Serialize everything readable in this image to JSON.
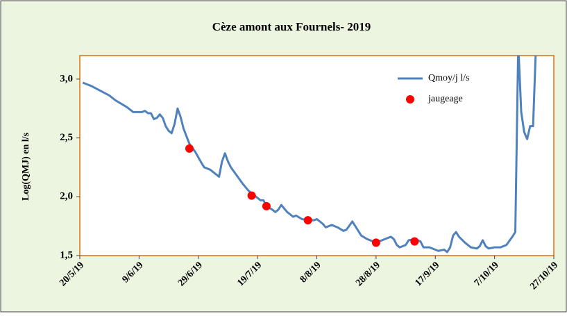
{
  "chart_data": {
    "type": "line",
    "title": "Cèze amont aux Fournels- 2019",
    "y_label": "Log(QMJ) en l/s",
    "xlim": [
      "2019-05-20",
      "2019-10-27"
    ],
    "xticks": [
      {
        "value": "2019-05-20",
        "label": "20/5/19"
      },
      {
        "value": "2019-06-09",
        "label": "9/6/19"
      },
      {
        "value": "2019-06-29",
        "label": "29/6/19"
      },
      {
        "value": "2019-07-19",
        "label": "19/7/19"
      },
      {
        "value": "2019-08-08",
        "label": "8/8/19"
      },
      {
        "value": "2019-08-28",
        "label": "28/8/19"
      },
      {
        "value": "2019-09-17",
        "label": "17/9/19"
      },
      {
        "value": "2019-10-07",
        "label": "7/10/19"
      },
      {
        "value": "2019-10-27",
        "label": "27/10/19"
      }
    ],
    "ylim": [
      1.5,
      3.2
    ],
    "yticks": [
      {
        "value": 1.5,
        "label": "1,5"
      },
      {
        "value": 2.0,
        "label": "2,0"
      },
      {
        "value": 2.5,
        "label": "2,5"
      },
      {
        "value": 3.0,
        "label": "3,0"
      }
    ],
    "legend": "top-right",
    "series": [
      {
        "name": "Qmoy/j l/s",
        "color": "#4f81bd",
        "type": "line",
        "x": [
          "2019-05-21",
          "2019-05-24",
          "2019-05-27",
          "2019-05-30",
          "2019-06-01",
          "2019-06-03",
          "2019-06-05",
          "2019-06-07",
          "2019-06-10",
          "2019-06-11",
          "2019-06-12",
          "2019-06-13",
          "2019-06-14",
          "2019-06-15",
          "2019-06-16",
          "2019-06-17",
          "2019-06-18",
          "2019-06-19",
          "2019-06-20",
          "2019-06-21",
          "2019-06-22",
          "2019-06-23",
          "2019-06-24",
          "2019-06-26",
          "2019-06-28",
          "2019-06-30",
          "2019-07-01",
          "2019-07-03",
          "2019-07-05",
          "2019-07-06",
          "2019-07-07",
          "2019-07-08",
          "2019-07-09",
          "2019-07-10",
          "2019-07-12",
          "2019-07-14",
          "2019-07-16",
          "2019-07-18",
          "2019-07-20",
          "2019-07-21",
          "2019-07-22",
          "2019-07-24",
          "2019-07-25",
          "2019-07-26",
          "2019-07-27",
          "2019-07-29",
          "2019-07-31",
          "2019-08-01",
          "2019-08-03",
          "2019-08-05",
          "2019-08-07",
          "2019-08-08",
          "2019-08-10",
          "2019-08-11",
          "2019-08-13",
          "2019-08-15",
          "2019-08-17",
          "2019-08-18",
          "2019-08-20",
          "2019-08-22",
          "2019-08-23",
          "2019-08-25",
          "2019-08-27",
          "2019-08-29",
          "2019-08-31",
          "2019-09-02",
          "2019-09-03",
          "2019-09-04",
          "2019-09-05",
          "2019-09-07",
          "2019-09-08",
          "2019-09-10",
          "2019-09-12",
          "2019-09-13",
          "2019-09-15",
          "2019-09-17",
          "2019-09-18",
          "2019-09-20",
          "2019-09-21",
          "2019-09-22",
          "2019-09-23",
          "2019-09-24",
          "2019-09-25",
          "2019-09-27",
          "2019-09-29",
          "2019-10-01",
          "2019-10-02",
          "2019-10-03",
          "2019-10-04",
          "2019-10-05",
          "2019-10-07",
          "2019-10-09",
          "2019-10-11",
          "2019-10-13",
          "2019-10-14",
          "2019-10-15",
          "2019-10-16",
          "2019-10-17",
          "2019-10-18",
          "2019-10-19",
          "2019-10-20",
          "2019-10-21"
        ],
        "values": [
          2.97,
          2.94,
          2.9,
          2.86,
          2.82,
          2.79,
          2.76,
          2.72,
          2.72,
          2.73,
          2.71,
          2.71,
          2.66,
          2.67,
          2.7,
          2.67,
          2.6,
          2.56,
          2.54,
          2.62,
          2.75,
          2.68,
          2.58,
          2.45,
          2.38,
          2.29,
          2.25,
          2.23,
          2.19,
          2.17,
          2.3,
          2.37,
          2.3,
          2.25,
          2.18,
          2.11,
          2.05,
          2.01,
          1.97,
          1.97,
          1.92,
          1.89,
          1.87,
          1.89,
          1.93,
          1.87,
          1.83,
          1.84,
          1.81,
          1.8,
          1.8,
          1.81,
          1.77,
          1.74,
          1.76,
          1.74,
          1.71,
          1.72,
          1.79,
          1.71,
          1.67,
          1.64,
          1.62,
          1.62,
          1.64,
          1.66,
          1.64,
          1.59,
          1.57,
          1.59,
          1.63,
          1.64,
          1.62,
          1.57,
          1.57,
          1.55,
          1.54,
          1.55,
          1.53,
          1.57,
          1.67,
          1.7,
          1.66,
          1.61,
          1.57,
          1.56,
          1.58,
          1.63,
          1.58,
          1.56,
          1.57,
          1.57,
          1.59,
          1.66,
          1.7,
          3.3,
          2.72,
          2.55,
          2.49,
          2.6,
          2.6,
          3.3
        ]
      },
      {
        "name": "jaugeage",
        "color": "#ff0000",
        "type": "scatter",
        "x": [
          "2019-06-26",
          "2019-07-17",
          "2019-07-22",
          "2019-08-05",
          "2019-08-28",
          "2019-09-10"
        ],
        "values": [
          2.41,
          2.01,
          1.92,
          1.8,
          1.61,
          1.62
        ]
      }
    ]
  }
}
